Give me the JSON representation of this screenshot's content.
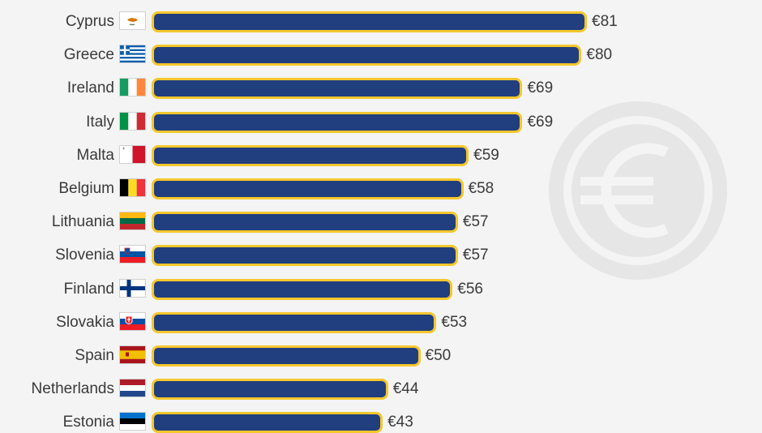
{
  "chart_data": {
    "type": "bar",
    "orientation": "horizontal",
    "title": "",
    "xlabel": "",
    "ylabel": "",
    "xlim": [
      0,
      85
    ],
    "categories": [
      "Cyprus",
      "Greece",
      "Ireland",
      "Italy",
      "Malta",
      "Belgium",
      "Lithuania",
      "Slovenia",
      "Finland",
      "Slovakia",
      "Spain",
      "Netherlands",
      "Estonia"
    ],
    "values": [
      81,
      80,
      69,
      69,
      59,
      58,
      57,
      57,
      56,
      53,
      50,
      44,
      43
    ],
    "value_labels": [
      "€81",
      "€80",
      "€69",
      "€69",
      "€59",
      "€58",
      "€57",
      "€57",
      "€56",
      "€53",
      "€50",
      "€44",
      "€43"
    ],
    "grid": false,
    "legend": "none"
  },
  "flags": [
    "cyprus-flag",
    "greece-flag",
    "ireland-flag",
    "italy-flag",
    "malta-flag",
    "belgium-flag",
    "lithuania-flag",
    "slovenia-flag",
    "finland-flag",
    "slovakia-flag",
    "spain-flag",
    "netherlands-flag",
    "estonia-flag"
  ],
  "colors": {
    "bar": "#213e7f",
    "bar_outline": "#f5c72c",
    "background": "#f4f4f4",
    "text": "#3a3a3a",
    "watermark": "#e6e6e6"
  },
  "watermark_icon": "euro-icon"
}
